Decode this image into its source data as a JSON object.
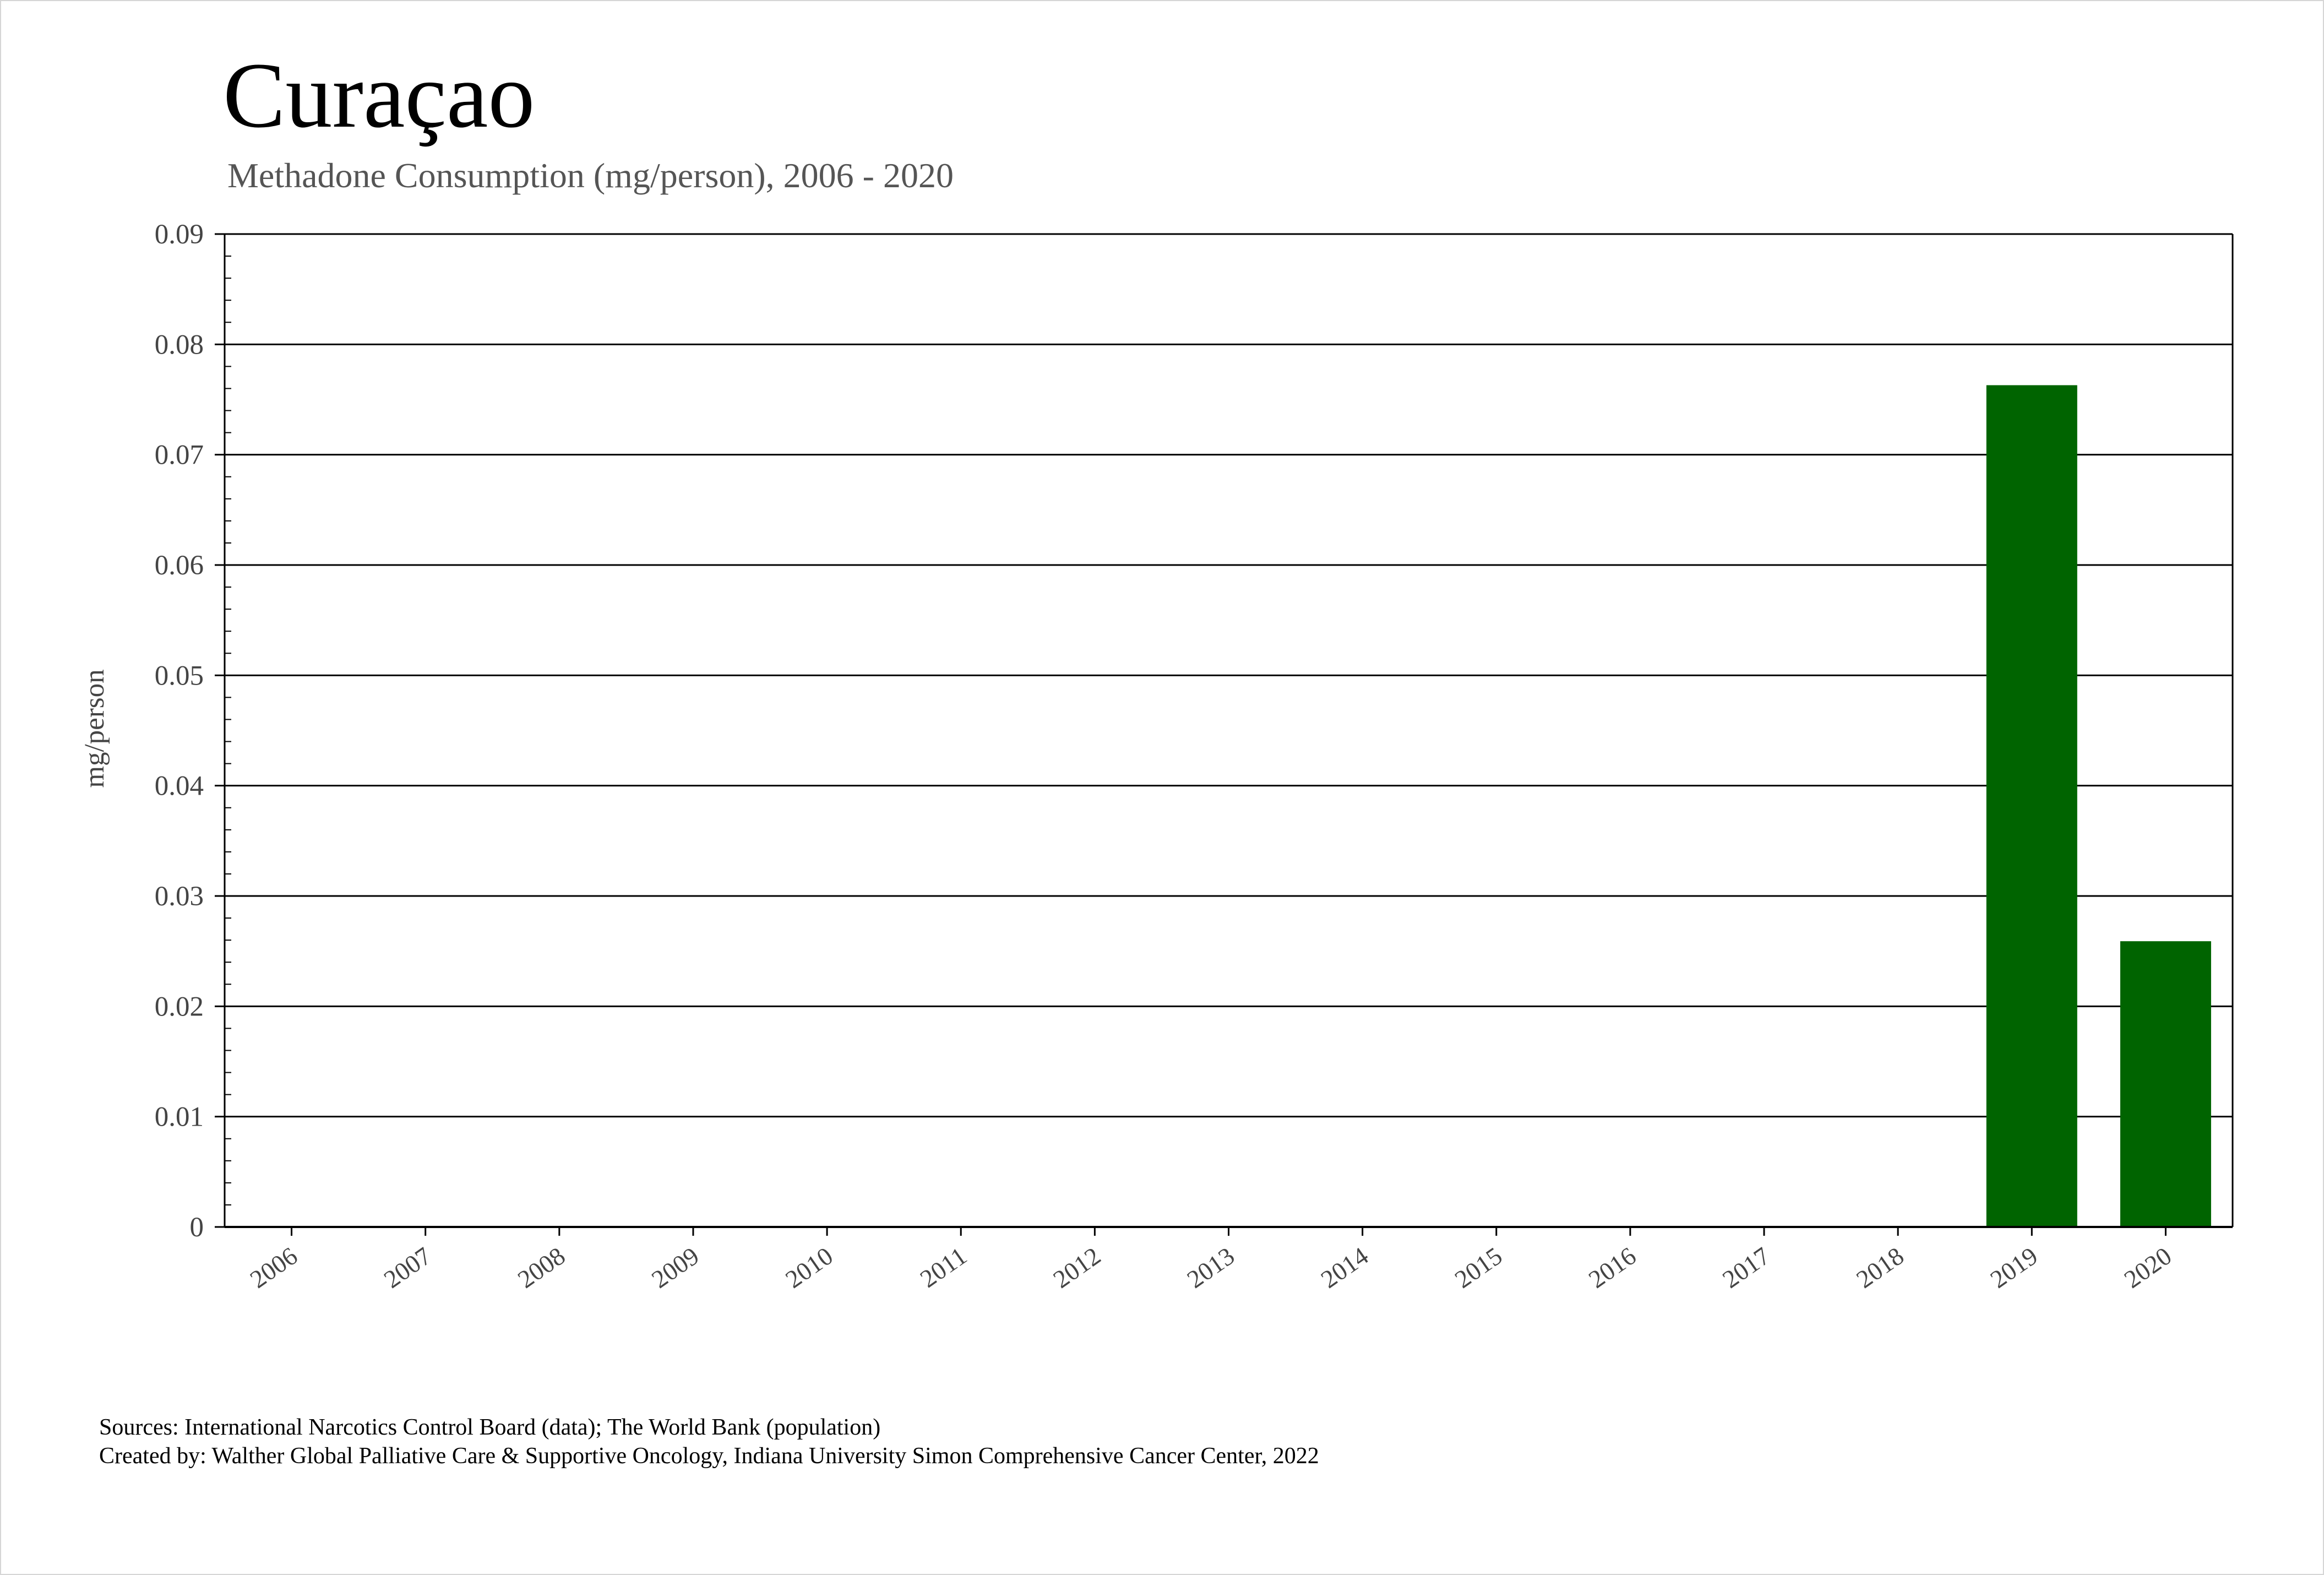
{
  "chart_data": {
    "type": "bar",
    "title": "Curaçao",
    "subtitle": "Methadone Consumption (mg/person), 2006 - 2020",
    "xlabel": "",
    "ylabel": "mg/person",
    "categories": [
      "2006",
      "2007",
      "2008",
      "2009",
      "2010",
      "2011",
      "2012",
      "2013",
      "2014",
      "2015",
      "2016",
      "2017",
      "2018",
      "2019",
      "2020"
    ],
    "values": [
      0,
      0,
      0,
      0,
      0,
      0,
      0,
      0,
      0,
      0,
      0,
      0,
      0,
      0.0763,
      0.0259
    ],
    "ylim": [
      0,
      0.09
    ],
    "yticks": [
      "0",
      "0.01",
      "0.02",
      "0.03",
      "0.04",
      "0.05",
      "0.06",
      "0.07",
      "0.08",
      "0.09"
    ],
    "grid": true,
    "bar_color": "#006400"
  },
  "footer": {
    "sources": "Sources: International Narcotics Control Board (data); The World Bank (population)",
    "created_by": "Created by: Walther Global Palliative Care & Supportive Oncology, Indiana University Simon Comprehensive Cancer Center, 2022"
  }
}
